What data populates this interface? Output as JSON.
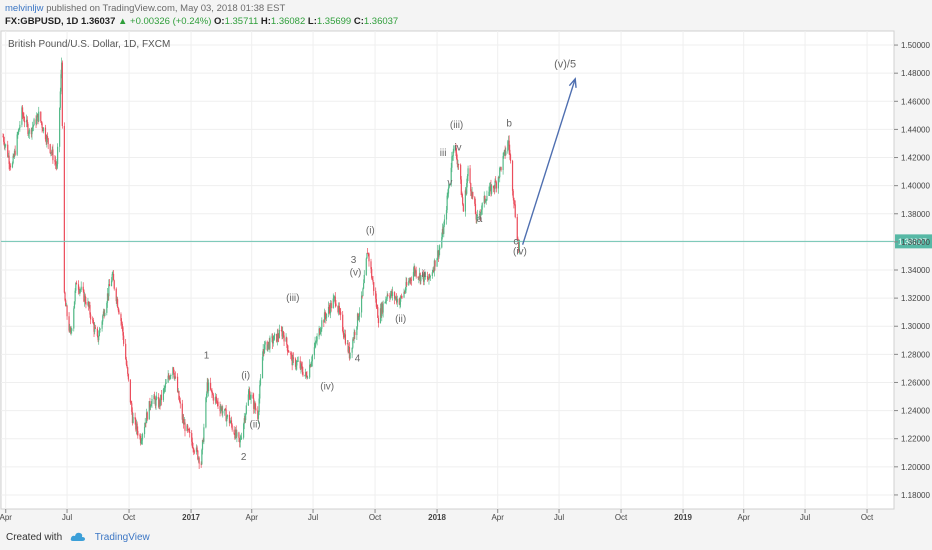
{
  "header": {
    "user": "melvinljw",
    "published": "published on TradingView.com, May 03, 2018 01:38 EST",
    "symbol": "FX:GBPUSD, 1D",
    "last": "1.36037",
    "change": "+0.00326 (+0.24%)",
    "o_label": "O:",
    "o": "1.35711",
    "h_label": "H:",
    "h": "1.36082",
    "l_label": "L:",
    "l": "1.35699",
    "c_label": "C:",
    "c": "1.36037"
  },
  "footer": {
    "created_with": "Created with",
    "brand": "TradingView"
  },
  "chart_data": {
    "type": "candlestick",
    "title": "British Pound/U.S. Dollar, 1D, FXCM",
    "ylim": [
      1.17,
      1.51
    ],
    "yticks": [
      "1.50000",
      "1.48000",
      "1.46000",
      "1.44000",
      "1.42000",
      "1.40000",
      "1.38000",
      "1.36000",
      "1.34000",
      "1.32000",
      "1.30000",
      "1.28000",
      "1.26000",
      "1.24000",
      "1.22000",
      "1.20000",
      "1.18000"
    ],
    "xlim": [
      "2016-03-25",
      "2019-11-10"
    ],
    "xticks": [
      {
        "label": "Apr",
        "date": "2016-04-01"
      },
      {
        "label": "Jul",
        "date": "2016-07-01"
      },
      {
        "label": "Oct",
        "date": "2016-10-01"
      },
      {
        "label": "2017",
        "date": "2017-01-01"
      },
      {
        "label": "Apr",
        "date": "2017-04-01"
      },
      {
        "label": "Jul",
        "date": "2017-07-01"
      },
      {
        "label": "Oct",
        "date": "2017-10-01"
      },
      {
        "label": "2018",
        "date": "2018-01-01"
      },
      {
        "label": "Apr",
        "date": "2018-04-01"
      },
      {
        "label": "Jul",
        "date": "2018-07-01"
      },
      {
        "label": "Oct",
        "date": "2018-10-01"
      },
      {
        "label": "2019",
        "date": "2019-01-01"
      },
      {
        "label": "Apr",
        "date": "2019-04-01"
      },
      {
        "label": "Jul",
        "date": "2019-07-01"
      },
      {
        "label": "Oct",
        "date": "2019-10-01"
      }
    ],
    "price_path": [
      [
        "2016-03-28",
        1.435
      ],
      [
        "2016-04-10",
        1.412
      ],
      [
        "2016-04-25",
        1.452
      ],
      [
        "2016-05-06",
        1.438
      ],
      [
        "2016-05-20",
        1.45
      ],
      [
        "2016-06-02",
        1.432
      ],
      [
        "2016-06-16",
        1.413
      ],
      [
        "2016-06-23",
        1.488
      ],
      [
        "2016-06-27",
        1.32
      ],
      [
        "2016-07-06",
        1.293
      ],
      [
        "2016-07-15",
        1.332
      ],
      [
        "2016-08-01",
        1.315
      ],
      [
        "2016-08-15",
        1.29
      ],
      [
        "2016-08-30",
        1.322
      ],
      [
        "2016-09-06",
        1.336
      ],
      [
        "2016-09-20",
        1.302
      ],
      [
        "2016-10-06",
        1.235
      ],
      [
        "2016-10-18",
        1.22
      ],
      [
        "2016-11-03",
        1.248
      ],
      [
        "2016-11-15",
        1.245
      ],
      [
        "2016-12-05",
        1.272
      ],
      [
        "2016-12-20",
        1.232
      ],
      [
        "2017-01-16",
        1.203
      ],
      [
        "2017-01-25",
        1.258
      ],
      [
        "2017-02-03",
        1.25
      ],
      [
        "2017-02-28",
        1.232
      ],
      [
        "2017-03-14",
        1.216
      ],
      [
        "2017-03-28",
        1.253
      ],
      [
        "2017-04-10",
        1.237
      ],
      [
        "2017-04-18",
        1.284
      ],
      [
        "2017-05-17",
        1.296
      ],
      [
        "2017-06-01",
        1.274
      ],
      [
        "2017-06-08",
        1.274
      ],
      [
        "2017-06-21",
        1.264
      ],
      [
        "2017-07-14",
        1.303
      ],
      [
        "2017-08-03",
        1.32
      ],
      [
        "2017-08-24",
        1.28
      ],
      [
        "2017-09-12",
        1.32
      ],
      [
        "2017-09-20",
        1.354
      ],
      [
        "2017-10-06",
        1.306
      ],
      [
        "2017-10-20",
        1.324
      ],
      [
        "2017-11-07",
        1.318
      ],
      [
        "2017-11-28",
        1.34
      ],
      [
        "2017-12-06",
        1.336
      ],
      [
        "2017-12-20",
        1.333
      ],
      [
        "2018-01-05",
        1.356
      ],
      [
        "2018-01-12",
        1.373
      ],
      [
        "2018-01-25",
        1.428
      ],
      [
        "2018-02-02",
        1.415
      ],
      [
        "2018-02-09",
        1.382
      ],
      [
        "2018-02-16",
        1.41
      ],
      [
        "2018-03-01",
        1.375
      ],
      [
        "2018-03-15",
        1.393
      ],
      [
        "2018-03-30",
        1.402
      ],
      [
        "2018-04-17",
        1.432
      ],
      [
        "2018-04-23",
        1.4
      ],
      [
        "2018-05-02",
        1.355
      ],
      [
        "2018-05-03",
        1.36
      ]
    ],
    "current_price": 1.36037,
    "projection": {
      "from": [
        "2018-05-08",
        1.358
      ],
      "to": [
        "2018-07-25",
        1.476
      ]
    },
    "wave_labels": [
      {
        "text": "(v)/5",
        "date": "2018-07-10",
        "price": 1.484
      },
      {
        "text": "b",
        "date": "2018-04-18",
        "price": 1.442
      },
      {
        "text": "(iii)",
        "date": "2018-01-30",
        "price": 1.441
      },
      {
        "text": "iii",
        "date": "2018-01-10",
        "price": 1.421
      },
      {
        "text": "iv",
        "date": "2018-02-01",
        "price": 1.425
      },
      {
        "text": "v",
        "date": "2018-01-20",
        "price": 1.4
      },
      {
        "text": "a",
        "date": "2018-03-05",
        "price": 1.374
      },
      {
        "text": "c",
        "date": "2018-04-28",
        "price": 1.358
      },
      {
        "text": "(iv)",
        "date": "2018-05-04",
        "price": 1.351
      },
      {
        "text": "(i)",
        "date": "2017-09-24",
        "price": 1.366
      },
      {
        "text": "ii",
        "date": "2017-12-12",
        "price": 1.335
      },
      {
        "text": "(ii)",
        "date": "2017-11-08",
        "price": 1.303
      },
      {
        "text": "3",
        "date": "2017-08-30",
        "price": 1.345
      },
      {
        "text": "(v)",
        "date": "2017-09-02",
        "price": 1.336
      },
      {
        "text": "4",
        "date": "2017-09-05",
        "price": 1.275
      },
      {
        "text": "(iii)",
        "date": "2017-06-01",
        "price": 1.318
      },
      {
        "text": "(iv)",
        "date": "2017-07-22",
        "price": 1.255
      },
      {
        "text": "1",
        "date": "2017-01-24",
        "price": 1.277
      },
      {
        "text": "(i)",
        "date": "2017-03-23",
        "price": 1.263
      },
      {
        "text": "(ii)",
        "date": "2017-04-06",
        "price": 1.228
      },
      {
        "text": "2",
        "date": "2017-03-20",
        "price": 1.205
      }
    ]
  }
}
